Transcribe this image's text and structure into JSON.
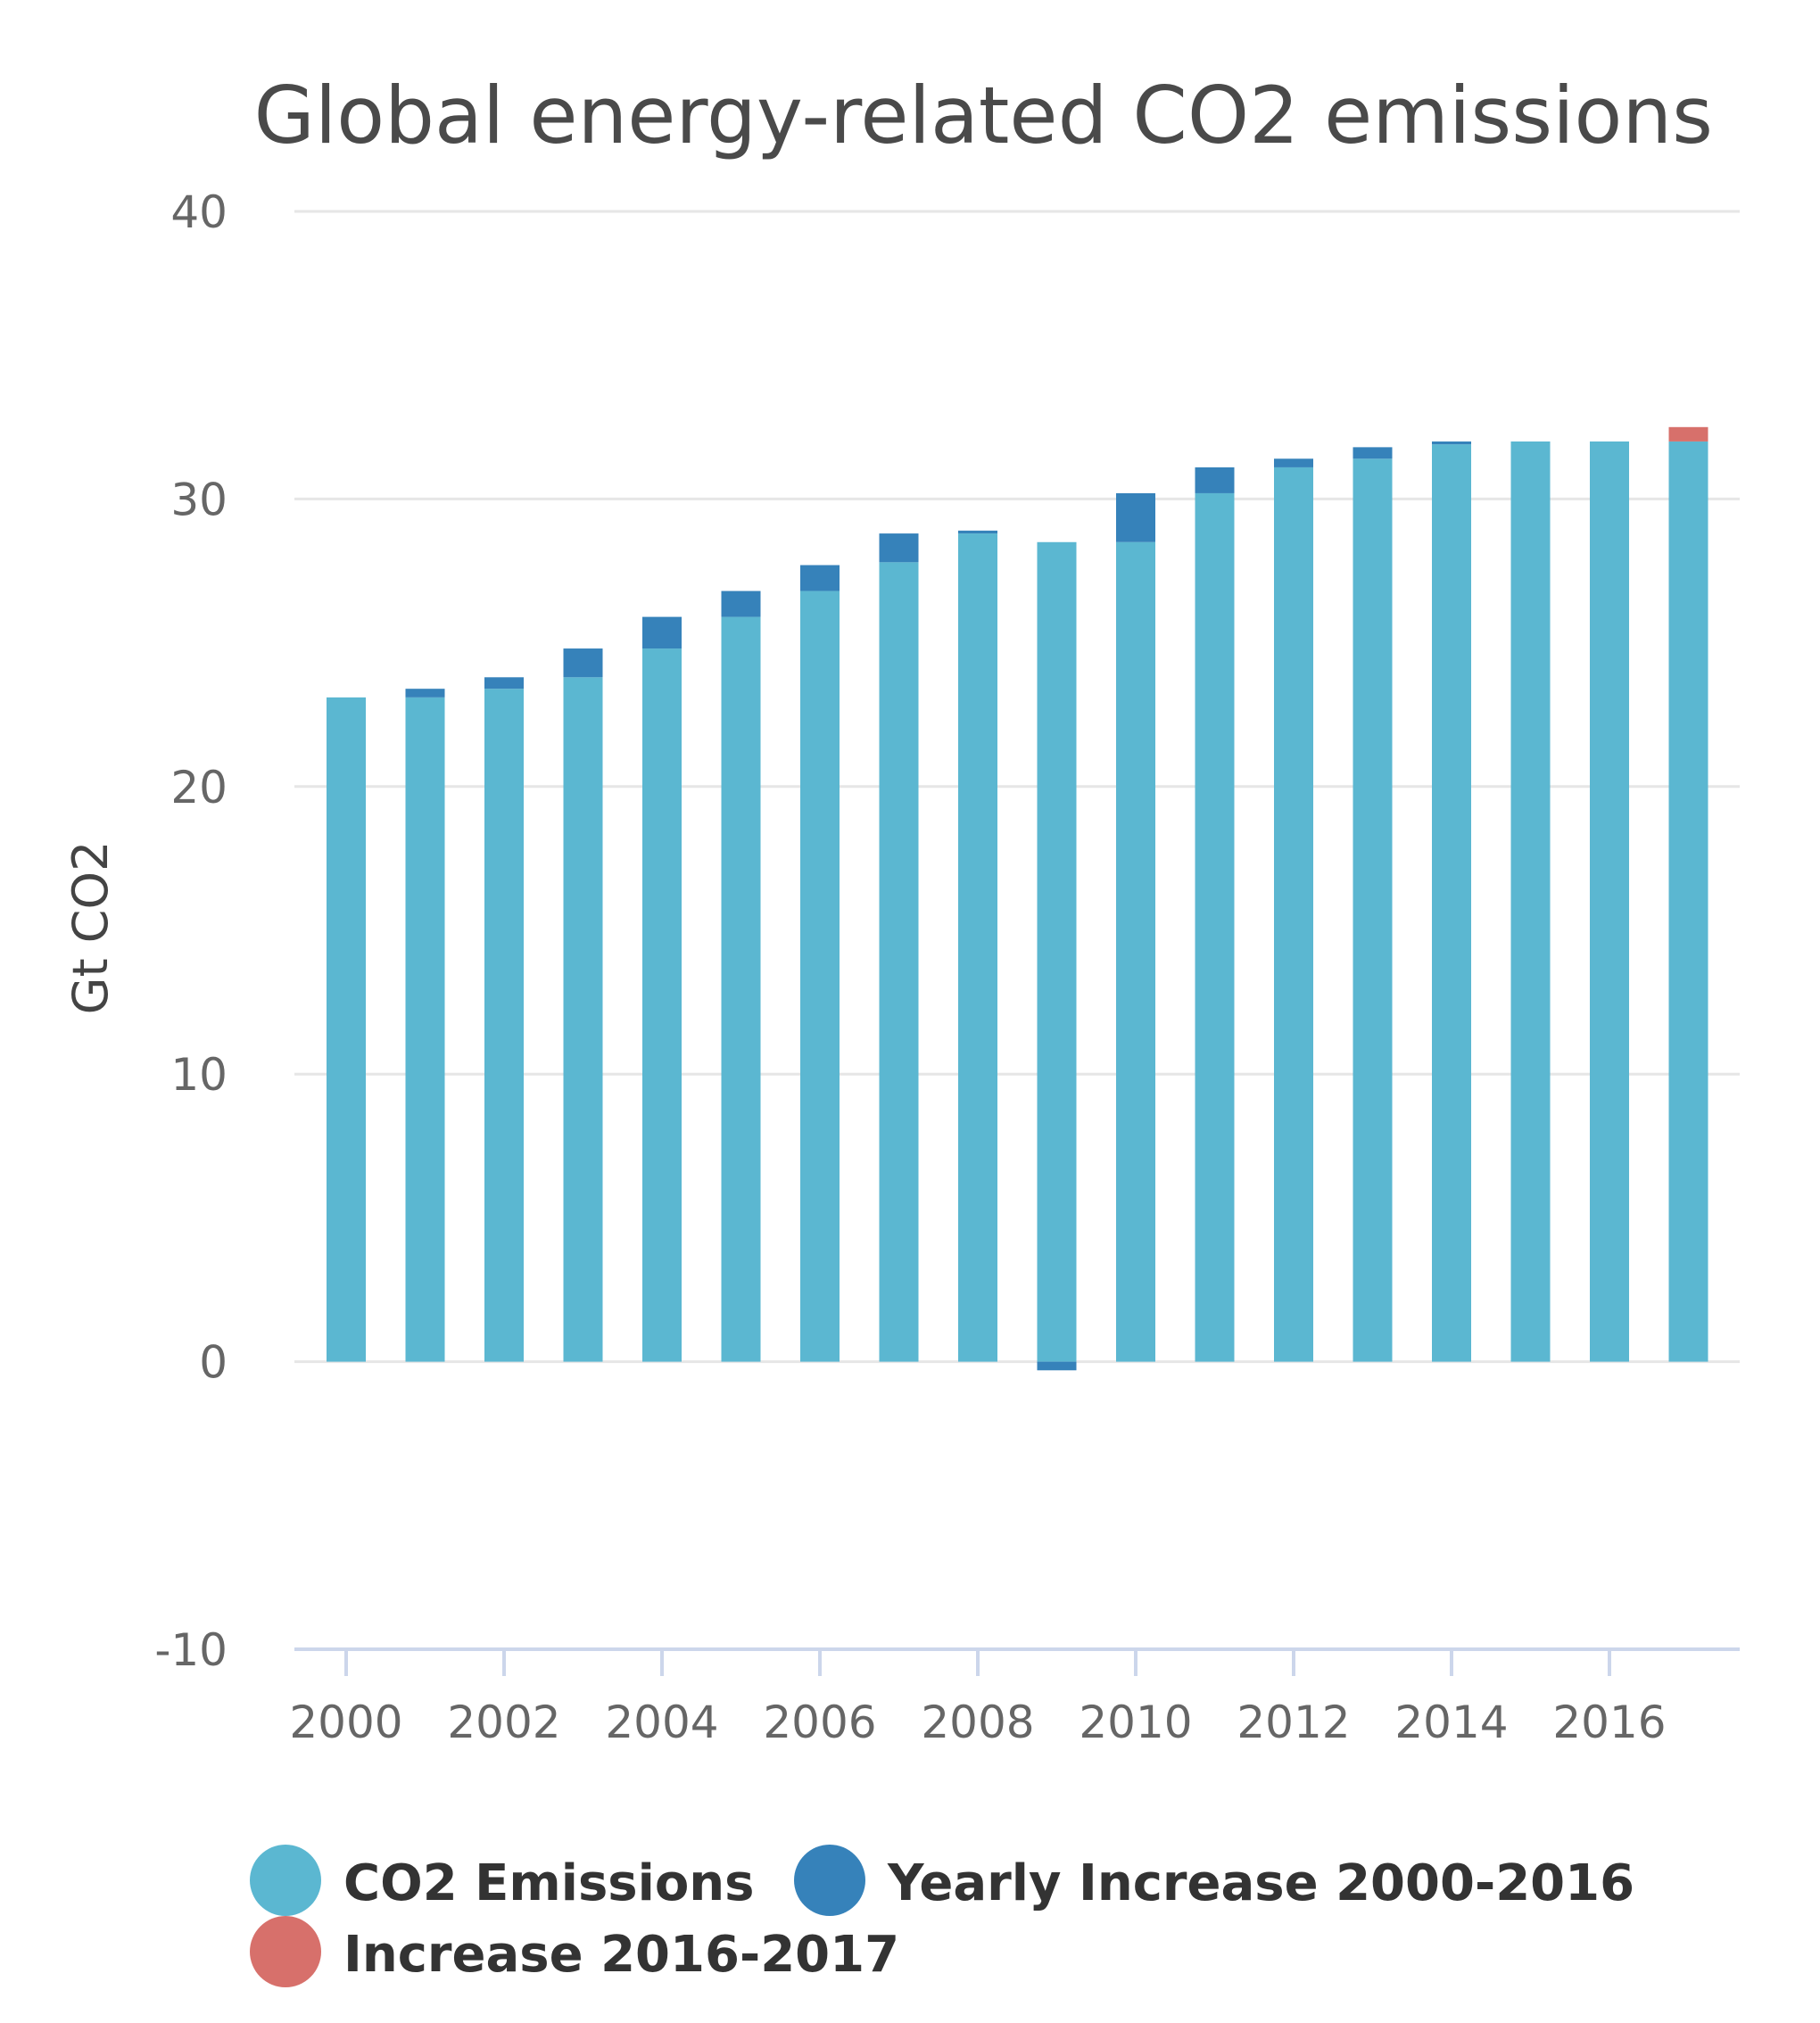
{
  "chart_data": {
    "type": "bar",
    "stacked": true,
    "title": "Global energy-related CO2 emissions",
    "ylabel": "Gt CO2",
    "xlabel": "",
    "ylim": [
      -10,
      40
    ],
    "yticks": [
      "40",
      "30",
      "20",
      "10",
      "0",
      "-10"
    ],
    "ytick_values": [
      40,
      30,
      20,
      10,
      0,
      -10
    ],
    "xticks": [
      "2000",
      "2002",
      "2004",
      "2006",
      "2008",
      "2010",
      "2012",
      "2014",
      "2016"
    ],
    "xtick_values": [
      2000,
      2002,
      2004,
      2006,
      2008,
      2010,
      2012,
      2014,
      2016
    ],
    "grid": true,
    "legend_position": "bottom",
    "categories": [
      2000,
      2001,
      2002,
      2003,
      2004,
      2005,
      2006,
      2007,
      2008,
      2009,
      2010,
      2011,
      2012,
      2013,
      2014,
      2015,
      2016,
      2017
    ],
    "series": [
      {
        "name": "CO2 Emissions",
        "color": "#5bb7d1",
        "values": [
          23.1,
          23.1,
          23.4,
          23.8,
          24.8,
          25.9,
          26.8,
          27.8,
          28.8,
          28.5,
          28.5,
          30.2,
          31.1,
          31.4,
          31.9,
          32.0,
          32.0,
          32.0
        ]
      },
      {
        "name": "Yearly Increase 2000-2016",
        "color": "#3682ba",
        "values": [
          0,
          0.3,
          0.4,
          1.0,
          1.1,
          0.9,
          0.9,
          1.0,
          0.1,
          -0.3,
          1.7,
          0.9,
          0.3,
          0.4,
          0.1,
          0,
          0,
          0
        ]
      },
      {
        "name": "Increase 2016-2017",
        "color": "#d7706b",
        "values": [
          0,
          0,
          0,
          0,
          0,
          0,
          0,
          0,
          0,
          0,
          0,
          0,
          0,
          0,
          0,
          0,
          0,
          0.5
        ]
      }
    ]
  },
  "colors": {
    "grid": "#e6e6e6",
    "axis": "#ccd6eb",
    "title": "#4a4a4a",
    "tick_label": "#666666"
  }
}
